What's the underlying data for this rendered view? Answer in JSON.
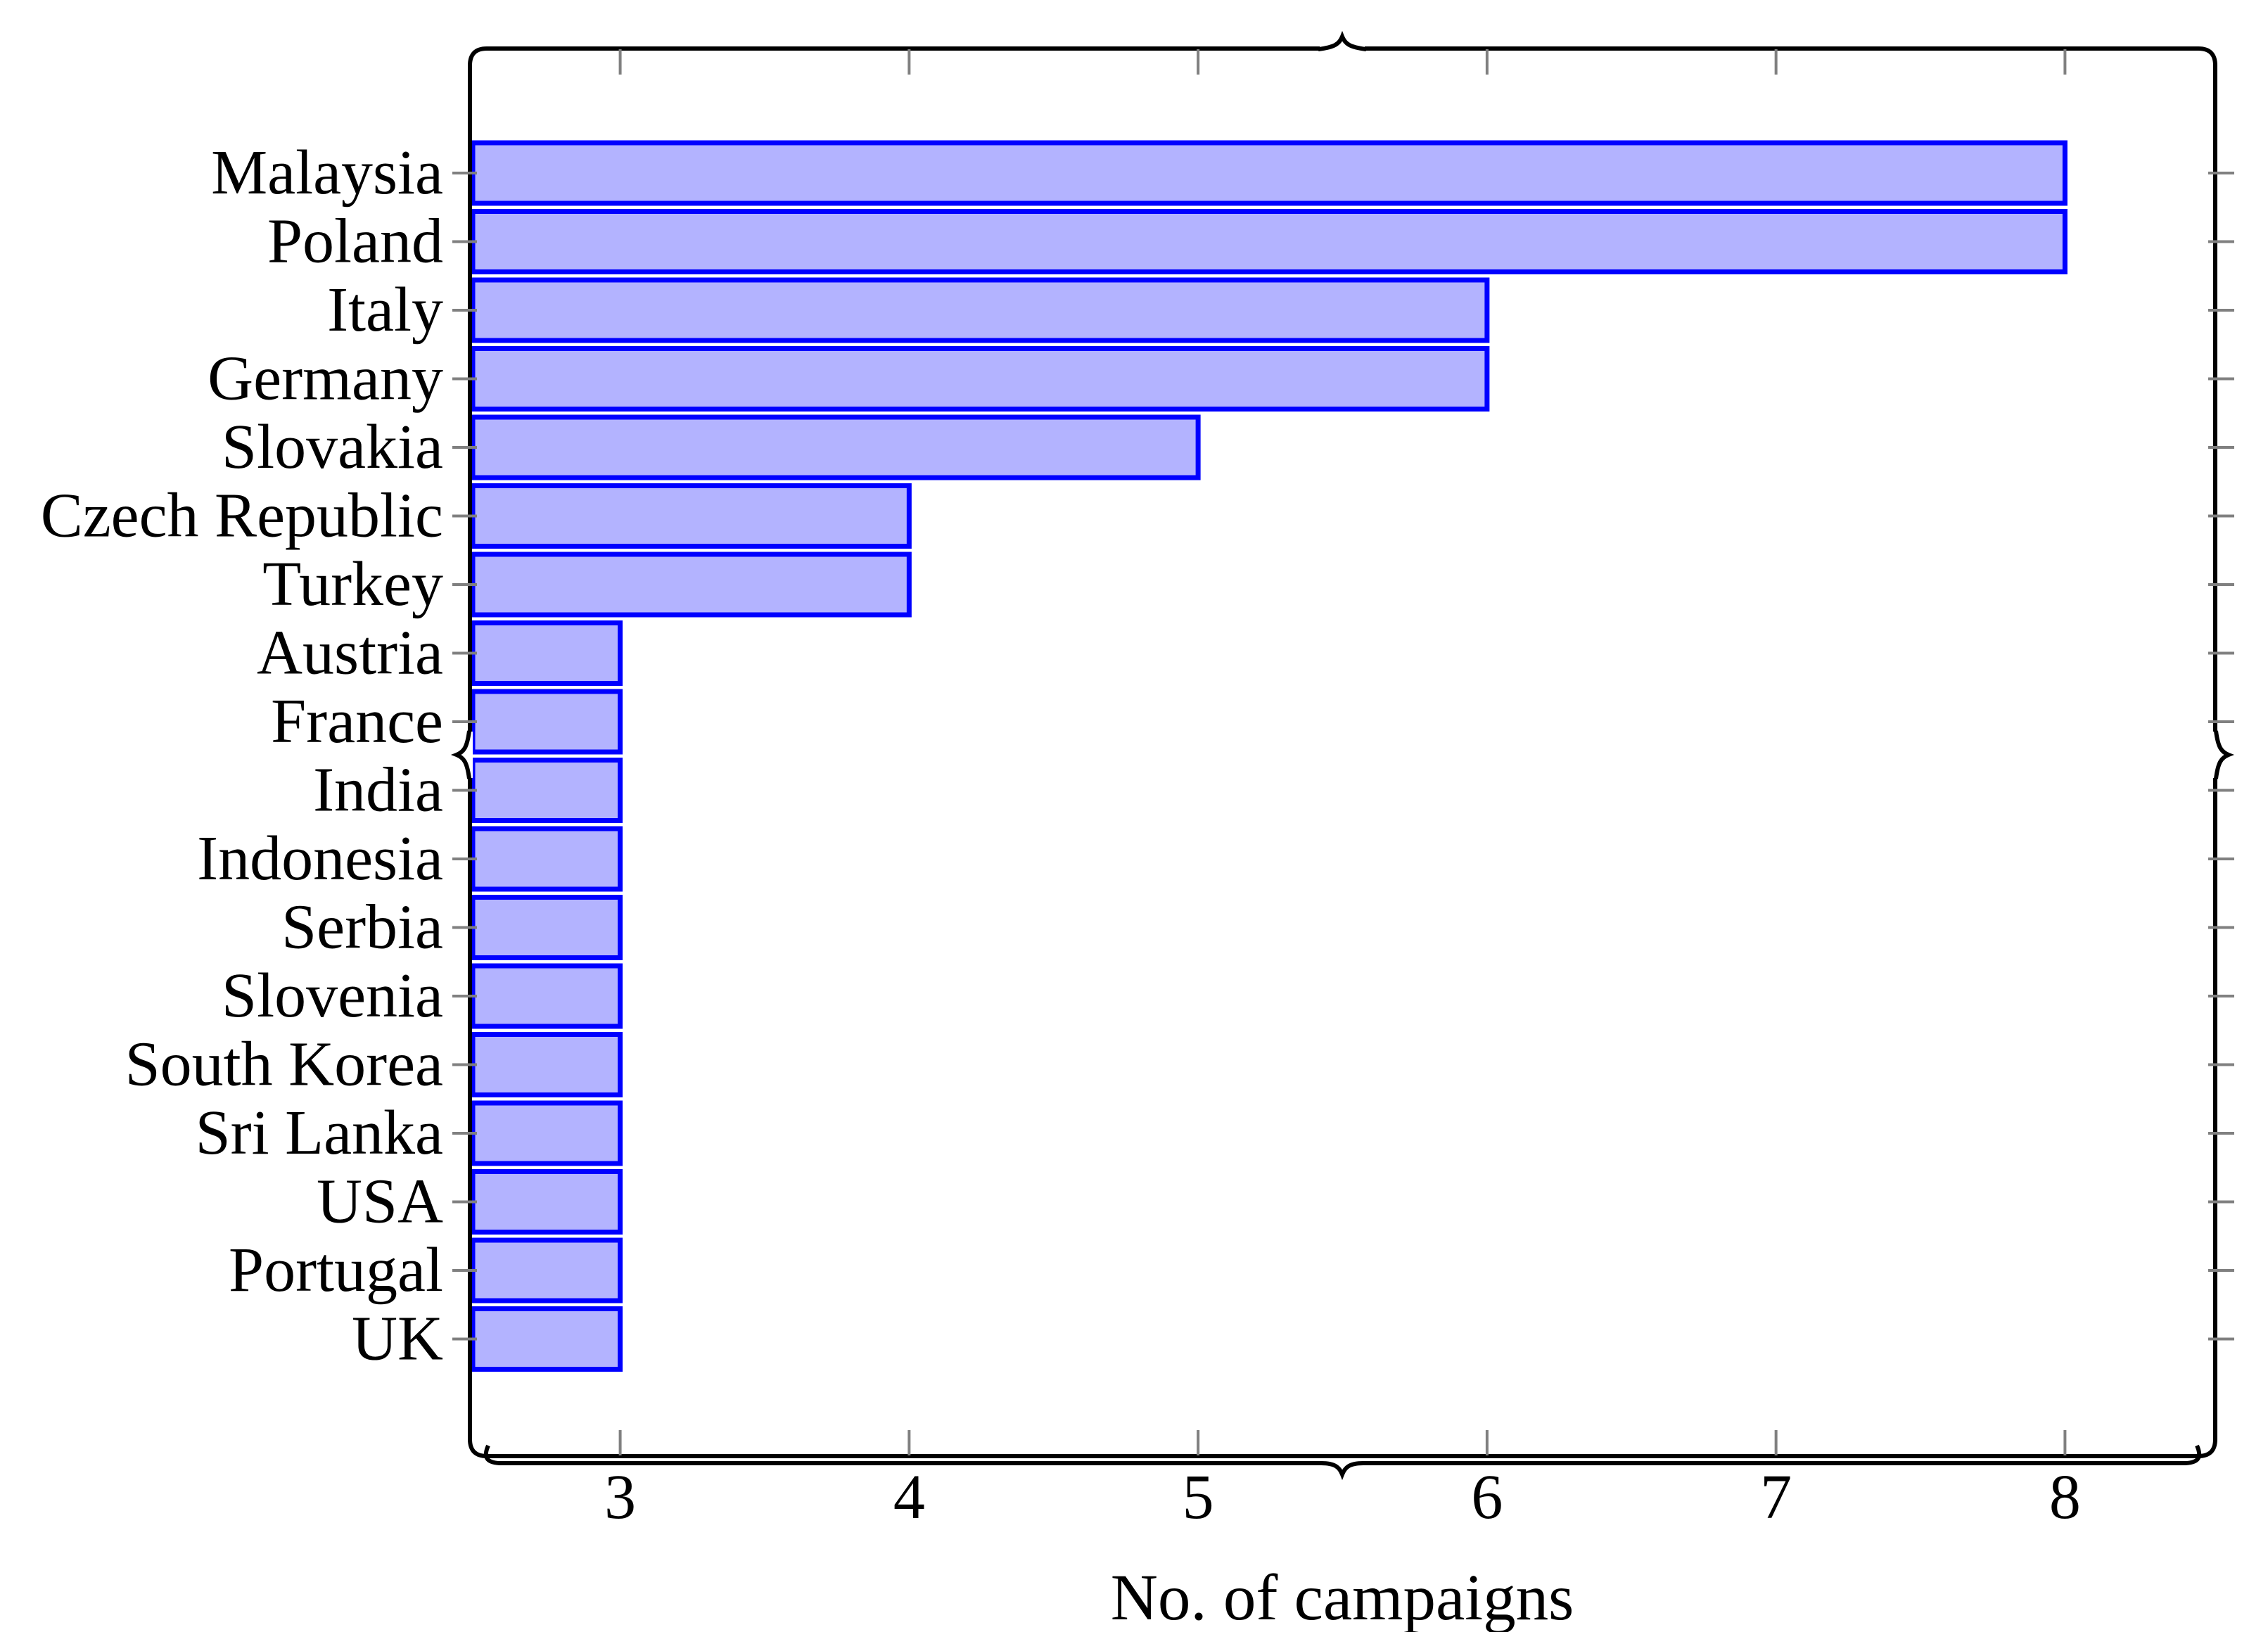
{
  "figure": {
    "background": "#ffffff"
  },
  "chart_data": {
    "type": "bar",
    "orientation": "horizontal",
    "xlabel": "No. of campaigns",
    "categories": [
      "Malaysia",
      "Poland",
      "Italy",
      "Germany",
      "Slovakia",
      "Czech Republic",
      "Turkey",
      "Austria",
      "France",
      "India",
      "Indonesia",
      "Serbia",
      "Slovenia",
      "South Korea",
      "Sri Lanka",
      "USA",
      "Portugal",
      "UK"
    ],
    "values": [
      8,
      8,
      6,
      6,
      5,
      4,
      4,
      3,
      3,
      3,
      3,
      3,
      3,
      3,
      3,
      3,
      3,
      3
    ],
    "x_ticks": [
      3,
      4,
      5,
      6,
      7,
      8
    ],
    "xlim": [
      2.48,
      8.52
    ],
    "grid": false,
    "legend": null,
    "bar_fill": "#b3b3ff",
    "bar_stroke": "#0000ff",
    "axis_color": "#000000",
    "tick_color": "#808080"
  }
}
